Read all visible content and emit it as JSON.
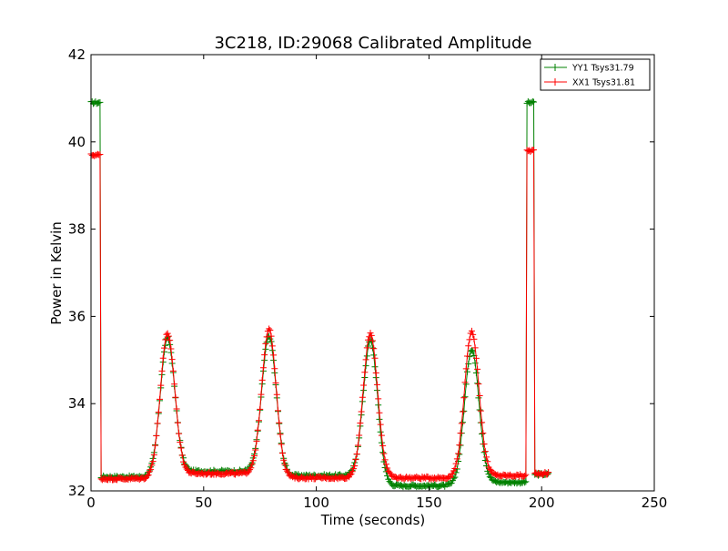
{
  "chart_data": {
    "type": "line",
    "title": "3C218, ID:29068 Calibrated Amplitude",
    "xlabel": "Time (seconds)",
    "ylabel": "Power in Kelvin",
    "xlim": [
      0,
      250
    ],
    "ylim": [
      32,
      42
    ],
    "xticks": [
      0,
      50,
      100,
      150,
      200,
      250
    ],
    "yticks": [
      32,
      34,
      36,
      38,
      40,
      42
    ],
    "grid": false,
    "legend_position": "top-right",
    "marker": "plus",
    "series": [
      {
        "name": "YY1 Tsys31.79",
        "color": "#008000",
        "baseline_segments": [
          {
            "from": 0,
            "to": 4,
            "level": 40.9
          },
          {
            "from": 4.5,
            "to": 28,
            "level": 32.32
          },
          {
            "from": 40,
            "to": 72,
            "level": 32.45
          },
          {
            "from": 85,
            "to": 117,
            "level": 32.35
          },
          {
            "from": 129,
            "to": 160,
            "level": 32.12
          },
          {
            "from": 175,
            "to": 193,
            "level": 32.2
          },
          {
            "from": 193.5,
            "to": 196.5,
            "level": 40.9
          },
          {
            "from": 197,
            "to": 203,
            "level": 32.38
          }
        ],
        "peaks": [
          {
            "center": 34,
            "value": 35.5
          },
          {
            "center": 79,
            "value": 35.55
          },
          {
            "center": 124,
            "value": 35.45
          },
          {
            "center": 169,
            "value": 35.25
          }
        ]
      },
      {
        "name": "XX1 Tsys31.81",
        "color": "#ff0000",
        "baseline_segments": [
          {
            "from": 0,
            "to": 4,
            "level": 39.7
          },
          {
            "from": 4.5,
            "to": 28,
            "level": 32.28
          },
          {
            "from": 40,
            "to": 72,
            "level": 32.4
          },
          {
            "from": 85,
            "to": 117,
            "level": 32.3
          },
          {
            "from": 129,
            "to": 160,
            "level": 32.3
          },
          {
            "from": 175,
            "to": 193,
            "level": 32.35
          },
          {
            "from": 193.5,
            "to": 196.5,
            "level": 39.8
          },
          {
            "from": 197,
            "to": 203,
            "level": 32.4
          }
        ],
        "peaks": [
          {
            "center": 34,
            "value": 35.6
          },
          {
            "center": 79,
            "value": 35.7
          },
          {
            "center": 124,
            "value": 35.6
          },
          {
            "center": 169,
            "value": 35.65
          }
        ]
      }
    ]
  }
}
